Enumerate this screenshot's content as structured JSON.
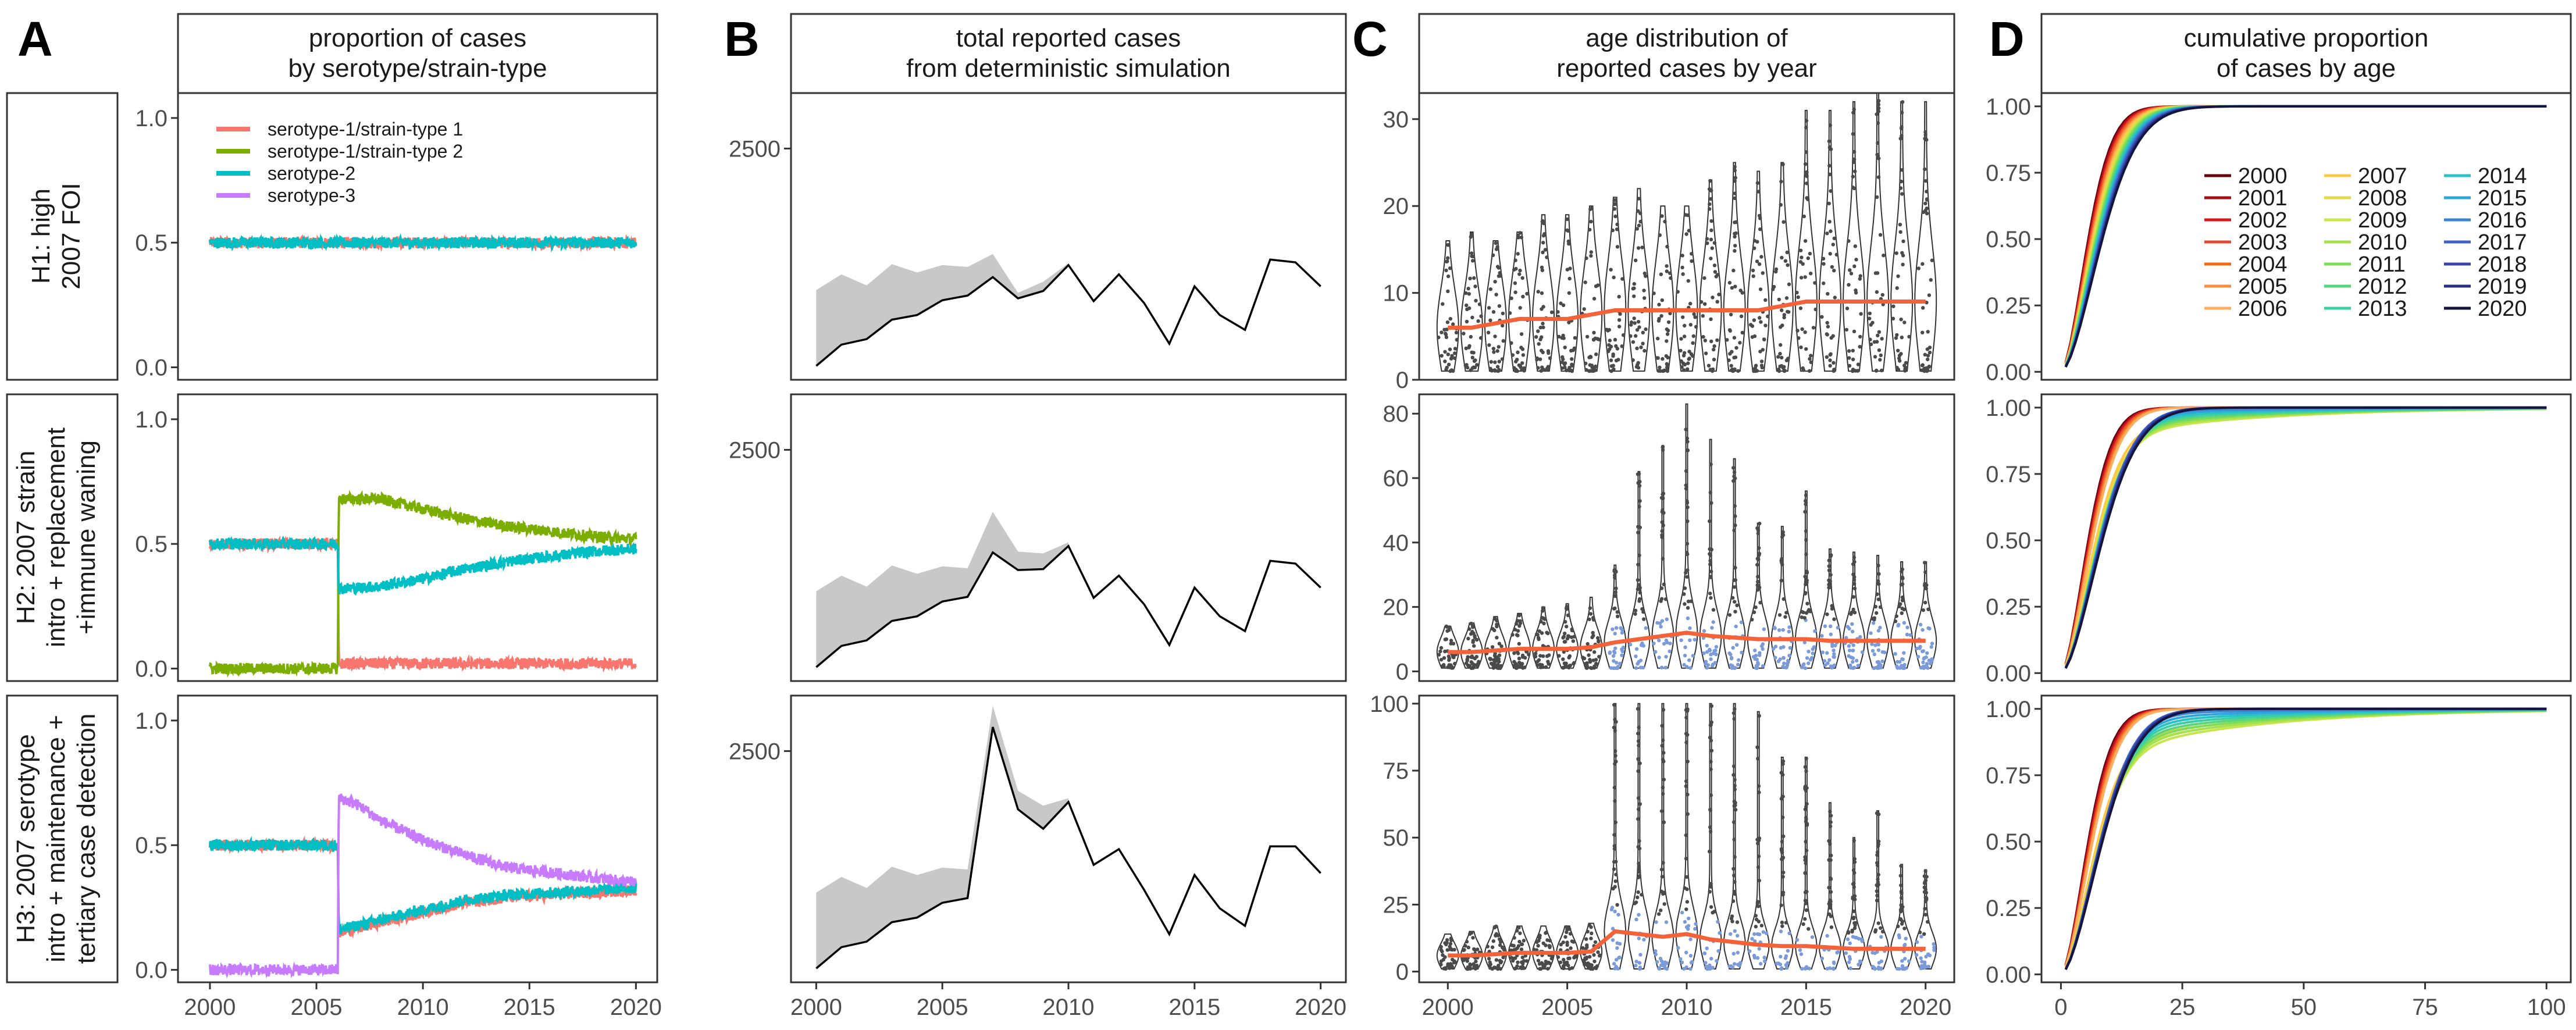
{
  "panel_letters": [
    "A",
    "B",
    "C",
    "D"
  ],
  "column_titles": [
    [
      "proportion of cases",
      "by serotype/strain-type"
    ],
    [
      "total reported cases",
      "from deterministic simulation"
    ],
    [
      "age distribution of",
      "reported cases by year"
    ],
    [
      "cumulative proportion",
      "of cases by age"
    ]
  ],
  "row_labels": [
    [
      "H1: high",
      "2007 FOI"
    ],
    [
      "H2: 2007 strain",
      "intro + replacement",
      "+immune waning"
    ],
    [
      "H3: 2007 serotype",
      "intro + maintenance +",
      "tertiary case detection"
    ]
  ],
  "colors": {
    "serotype1_strain1": "#f8766d",
    "serotype1_strain2": "#7cae00",
    "serotype2": "#00bfc4",
    "serotype3": "#c77cff",
    "median_line": "#f4623a",
    "ribbon": "#c8c8c8",
    "violin_fill": "#ffffff",
    "violin_points": "#4a4a4a",
    "violin_points_blue": "#7b9bd8"
  },
  "chart_data": [
    {
      "id": "A",
      "type": "line",
      "title": "proportion of cases by serotype/strain-type",
      "xlabel": "",
      "ylabel": "",
      "xlim": [
        1998.5,
        2021
      ],
      "ylim": [
        -0.05,
        1.1
      ],
      "xticks": [
        "2000",
        "2005",
        "2010",
        "2015",
        "2020"
      ],
      "yticks": [
        "0.0",
        "0.5",
        "1.0"
      ],
      "legend": {
        "placement": "top-left",
        "entries": [
          "serotype-1/strain-type 1",
          "serotype-1/strain-type 2",
          "serotype-2",
          "serotype-3"
        ]
      },
      "rows": [
        {
          "row": "H1",
          "series": [
            {
              "name": "serotype-1/strain-type 1",
              "x": [
                2000,
                2020
              ],
              "y": [
                0.5,
                0.5
              ]
            },
            {
              "name": "serotype-2",
              "x": [
                2000,
                2020
              ],
              "y": [
                0.5,
                0.5
              ]
            }
          ]
        },
        {
          "row": "H2",
          "series": [
            {
              "name": "serotype-1/strain-type 1",
              "x": [
                2000,
                2006,
                2006.05,
                2020
              ],
              "y": [
                0.5,
                0.5,
                0.02,
                0.02
              ]
            },
            {
              "name": "serotype-1/strain-type 2",
              "x": [
                2000,
                2006,
                2006.05,
                2008,
                2010,
                2012,
                2014,
                2016,
                2018,
                2020
              ],
              "y": [
                0.0,
                0.0,
                0.68,
                0.68,
                0.64,
                0.6,
                0.57,
                0.55,
                0.53,
                0.52
              ]
            },
            {
              "name": "serotype-2",
              "x": [
                2000,
                2006,
                2006.05,
                2008,
                2010,
                2012,
                2014,
                2016,
                2018,
                2020
              ],
              "y": [
                0.5,
                0.5,
                0.32,
                0.33,
                0.36,
                0.4,
                0.43,
                0.45,
                0.47,
                0.48
              ]
            }
          ]
        },
        {
          "row": "H3",
          "series": [
            {
              "name": "serotype-1/strain-type 1",
              "x": [
                2000,
                2006,
                2006.05,
                2008,
                2010,
                2012,
                2014,
                2016,
                2018,
                2020
              ],
              "y": [
                0.5,
                0.5,
                0.15,
                0.19,
                0.23,
                0.27,
                0.29,
                0.3,
                0.31,
                0.32
              ]
            },
            {
              "name": "serotype-2",
              "x": [
                2000,
                2006,
                2006.05,
                2008,
                2010,
                2012,
                2014,
                2016,
                2018,
                2020
              ],
              "y": [
                0.5,
                0.5,
                0.16,
                0.2,
                0.24,
                0.28,
                0.3,
                0.31,
                0.32,
                0.33
              ]
            },
            {
              "name": "serotype-3",
              "x": [
                2000,
                2006,
                2006.05,
                2007,
                2008,
                2010,
                2012,
                2014,
                2016,
                2018,
                2020
              ],
              "y": [
                0.0,
                0.0,
                0.69,
                0.66,
                0.6,
                0.52,
                0.46,
                0.41,
                0.39,
                0.37,
                0.35
              ]
            }
          ]
        }
      ]
    },
    {
      "id": "B",
      "type": "line",
      "title": "total reported cases from deterministic simulation",
      "xlabel": "",
      "ylabel": "",
      "xlim": [
        1999,
        2021
      ],
      "ylim": [
        0,
        3100
      ],
      "xticks": [
        "2000",
        "2005",
        "2010",
        "2015",
        "2020"
      ],
      "yticks": [
        "2500"
      ],
      "rows": [
        {
          "row": "H1",
          "x": [
            2000,
            2001,
            2002,
            2003,
            2004,
            2005,
            2006,
            2007,
            2008,
            2009,
            2010,
            2011,
            2012,
            2013,
            2014,
            2015,
            2016,
            2017,
            2018,
            2019,
            2020
          ],
          "line": [
            150,
            380,
            440,
            650,
            700,
            860,
            910,
            1110,
            880,
            960,
            1240,
            850,
            1140,
            830,
            390,
            1010,
            700,
            540,
            1300,
            1270,
            1010
          ],
          "ribbon_upper": [
            970,
            1140,
            1020,
            1250,
            1160,
            1240,
            1220,
            1360,
            940,
            1060,
            1260
          ]
        },
        {
          "row": "H2",
          "x": [
            2000,
            2001,
            2002,
            2003,
            2004,
            2005,
            2006,
            2007,
            2008,
            2009,
            2010,
            2011,
            2012,
            2013,
            2014,
            2015,
            2016,
            2017,
            2018,
            2019,
            2020
          ],
          "line": [
            150,
            380,
            440,
            650,
            700,
            860,
            910,
            1390,
            1200,
            1210,
            1460,
            900,
            1140,
            830,
            390,
            1010,
            700,
            540,
            1300,
            1270,
            1010
          ],
          "ribbon_upper": [
            970,
            1140,
            1020,
            1250,
            1160,
            1240,
            1220,
            1830,
            1400,
            1380,
            1500
          ]
        },
        {
          "row": "H3",
          "x": [
            2000,
            2001,
            2002,
            2003,
            2004,
            2005,
            2006,
            2007,
            2008,
            2009,
            2010,
            2011,
            2012,
            2013,
            2014,
            2015,
            2016,
            2017,
            2018,
            2019,
            2020
          ],
          "line": [
            150,
            380,
            440,
            650,
            700,
            860,
            910,
            2760,
            1870,
            1660,
            1950,
            1270,
            1440,
            1000,
            520,
            1160,
            800,
            610,
            1470,
            1470,
            1180
          ],
          "ribbon_upper": [
            970,
            1140,
            1020,
            1250,
            1160,
            1240,
            1220,
            2990,
            2070,
            1910,
            1990
          ]
        }
      ]
    },
    {
      "id": "C",
      "type": "violin",
      "title": "age distribution of reported cases by year",
      "xlabel": "",
      "ylabel": "",
      "xlim": [
        1998.8,
        2021.2
      ],
      "xticks": [
        "2000",
        "2005",
        "2010",
        "2015",
        "2020"
      ],
      "years": [
        2000,
        2001,
        2002,
        2003,
        2004,
        2005,
        2006,
        2007,
        2008,
        2009,
        2010,
        2011,
        2012,
        2013,
        2014,
        2015,
        2016,
        2017,
        2018,
        2019,
        2020
      ],
      "rows": [
        {
          "row": "H1",
          "ylim": [
            0,
            33
          ],
          "yticks": [
            "0",
            "10",
            "20",
            "30"
          ],
          "max_age": [
            16,
            17,
            16,
            17,
            19,
            19,
            20,
            21,
            22,
            20,
            20,
            23,
            25,
            24,
            25,
            31,
            31,
            32,
            33,
            32,
            32
          ],
          "median": [
            6,
            6,
            6.5,
            7,
            7,
            7,
            7.5,
            8,
            8,
            8,
            8,
            8,
            8,
            8,
            8.5,
            9,
            9,
            9,
            9,
            9,
            9
          ]
        },
        {
          "row": "H2",
          "ylim": [
            -3,
            86
          ],
          "yticks": [
            "0",
            "20",
            "40",
            "60",
            "80"
          ],
          "max_age": [
            14,
            15,
            17,
            18,
            20,
            21,
            23,
            33,
            62,
            70,
            83,
            72,
            66,
            46,
            45,
            56,
            38,
            37,
            36,
            34,
            34
          ],
          "median": [
            6,
            6,
            6.5,
            7,
            7,
            7,
            7.5,
            9,
            10,
            11,
            12,
            11,
            10.5,
            10,
            10,
            10,
            9.5,
            9.5,
            9.5,
            9.5,
            9.5
          ]
        },
        {
          "row": "H3",
          "ylim": [
            -4,
            103
          ],
          "yticks": [
            "0",
            "25",
            "50",
            "75",
            "100"
          ],
          "max_age": [
            14,
            15,
            17,
            17,
            17,
            17,
            18,
            100,
            100,
            100,
            100,
            100,
            100,
            97,
            80,
            80,
            63,
            50,
            60,
            40,
            38
          ],
          "median": [
            6,
            6,
            6.5,
            7,
            7,
            7,
            7.5,
            15,
            14,
            13,
            14,
            12,
            11,
            10,
            9.5,
            9.5,
            9,
            8.5,
            8.5,
            8.5,
            8.5
          ]
        }
      ]
    },
    {
      "id": "D",
      "type": "line",
      "title": "cumulative proportion of cases by age",
      "xlabel": "",
      "ylabel": "",
      "xlim": [
        -4,
        105
      ],
      "ylim": [
        -0.03,
        1.05
      ],
      "xticks": [
        "0",
        "25",
        "50",
        "75",
        "100"
      ],
      "yticks": [
        "0.00",
        "0.25",
        "0.50",
        "0.75",
        "1.00"
      ],
      "legend": {
        "placement": "right",
        "entries": [
          "2000",
          "2001",
          "2002",
          "2003",
          "2004",
          "2005",
          "2006",
          "2007",
          "2008",
          "2009",
          "2010",
          "2011",
          "2012",
          "2013",
          "2014",
          "2015",
          "2016",
          "2017",
          "2018",
          "2019",
          "2020"
        ],
        "colors": [
          "#67000d",
          "#a50f15",
          "#d7191c",
          "#e34a33",
          "#f16913",
          "#fd8d3c",
          "#fdae61",
          "#fdc842",
          "#e6d94a",
          "#c7e64b",
          "#a6e24f",
          "#7fdc58",
          "#57d67d",
          "#3ccfa2",
          "#29c2c7",
          "#2ea6d9",
          "#3b86d1",
          "#3f62c4",
          "#3746a8",
          "#27307e",
          "#14143f"
        ]
      },
      "rows": [
        {
          "row": "H1",
          "tail_min": 0.0,
          "tail_max": 0.0
        },
        {
          "row": "H2",
          "tail_min": 0.0,
          "tail_max": 0.14
        },
        {
          "row": "H3",
          "tail_min": 0.0,
          "tail_max": 0.22
        }
      ]
    }
  ]
}
